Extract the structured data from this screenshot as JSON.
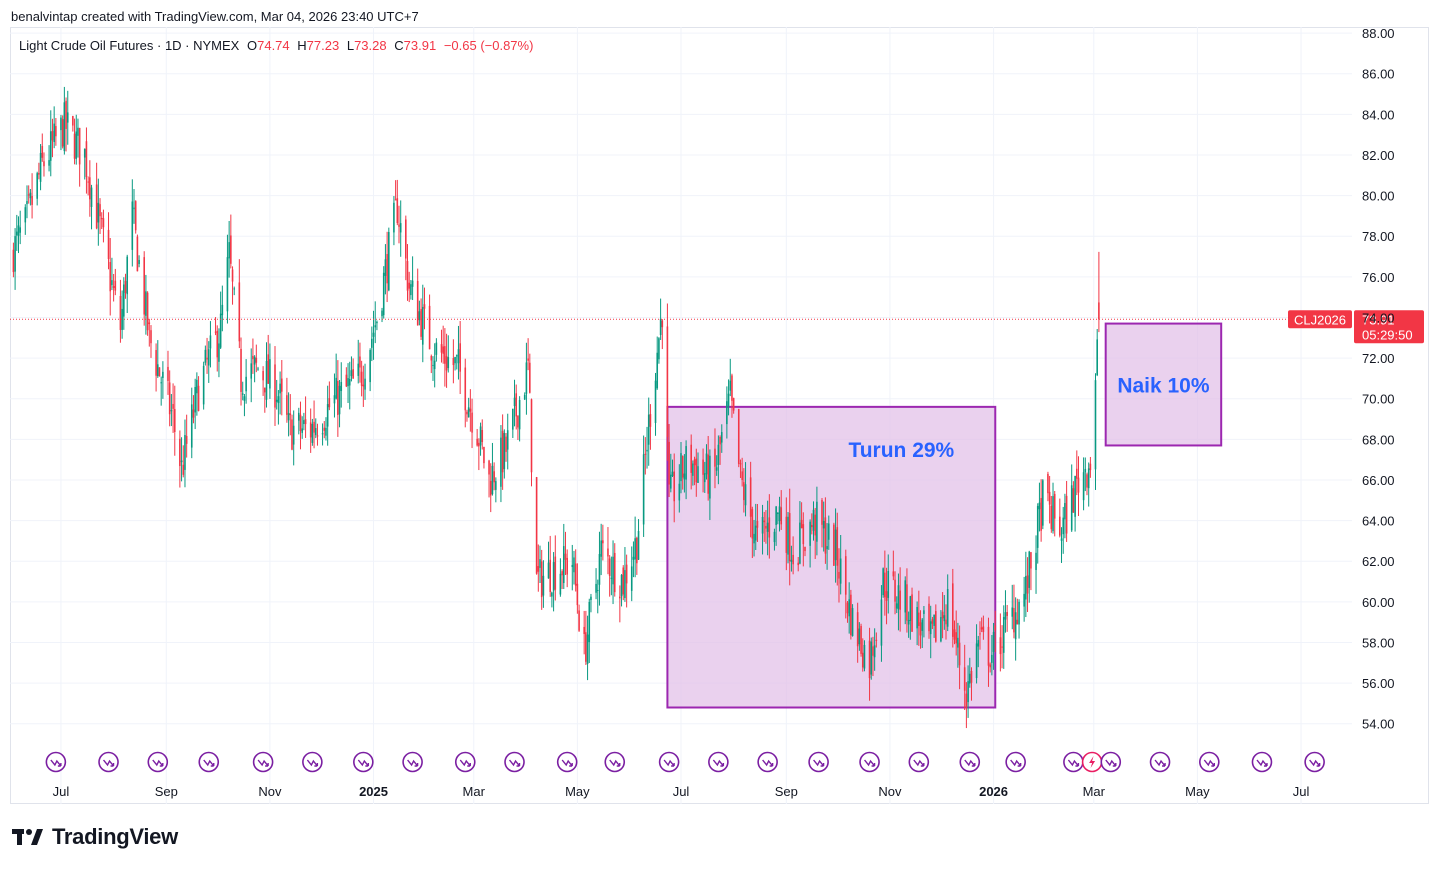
{
  "credit": "benalvintap created with TradingView.com, Mar 04, 2026 23:40 UTC+7",
  "legend": {
    "symbol": "Light Crude Oil Futures · 1D · NYMEX",
    "o_label": "O",
    "o": "74.74",
    "h_label": "H",
    "h": "77.23",
    "l_label": "L",
    "l": "73.28",
    "c_label": "C",
    "c": "73.91",
    "change": "−0.65 (−0.87%)"
  },
  "price_tag": {
    "ticker": "CLJ2026",
    "price": "73.91",
    "countdown": "05:29:50"
  },
  "brand": "TradingView",
  "colors": {
    "up": "#089981",
    "down": "#f23645",
    "box_fill": "#e1bee7",
    "box_border": "#9c27b0",
    "annotation_text": "#2962ff",
    "event_icon": "#7b1fa2"
  },
  "chart_data": {
    "type": "candlestick",
    "y_axis": {
      "ticks": [
        "88.00",
        "86.00",
        "84.00",
        "82.00",
        "80.00",
        "78.00",
        "76.00",
        "74.00",
        "72.00",
        "70.00",
        "68.00",
        "66.00",
        "64.00",
        "62.00",
        "60.00",
        "58.00",
        "56.00",
        "54.00"
      ],
      "ylim": [
        53.2,
        88.3
      ],
      "position": "right"
    },
    "x_axis": {
      "ticks": [
        {
          "label": "Jul",
          "bold": false
        },
        {
          "label": "Sep",
          "bold": false
        },
        {
          "label": "Nov",
          "bold": false
        },
        {
          "label": "2025",
          "bold": true
        },
        {
          "label": "Mar",
          "bold": false
        },
        {
          "label": "May",
          "bold": false
        },
        {
          "label": "Jul",
          "bold": false
        },
        {
          "label": "Sep",
          "bold": false
        },
        {
          "label": "Nov",
          "bold": false
        },
        {
          "label": "2026",
          "bold": true
        },
        {
          "label": "Mar",
          "bold": false
        },
        {
          "label": "May",
          "bold": false
        },
        {
          "label": "Jul",
          "bold": false
        }
      ],
      "range": [
        "2024-06-01",
        "2026-07-31"
      ]
    },
    "last_price": 73.91,
    "path_description": "Daily closes approximated from chart",
    "anchors": [
      [
        "2024-06-01",
        77.0
      ],
      [
        "2024-06-10",
        78.5
      ],
      [
        "2024-06-20",
        81.5
      ],
      [
        "2024-07-03",
        83.5
      ],
      [
        "2024-07-15",
        82.0
      ],
      [
        "2024-07-25",
        78.0
      ],
      [
        "2024-08-05",
        73.5
      ],
      [
        "2024-08-12",
        79.0
      ],
      [
        "2024-08-22",
        73.0
      ],
      [
        "2024-09-05",
        69.0
      ],
      [
        "2024-09-10",
        66.5
      ],
      [
        "2024-09-20",
        70.5
      ],
      [
        "2024-10-03",
        73.5
      ],
      [
        "2024-10-08",
        77.0
      ],
      [
        "2024-10-15",
        71.0
      ],
      [
        "2024-10-25",
        71.5
      ],
      [
        "2024-11-05",
        70.5
      ],
      [
        "2024-11-12",
        68.5
      ],
      [
        "2024-11-25",
        68.5
      ],
      [
        "2024-12-10",
        70.0
      ],
      [
        "2024-12-24",
        71.0
      ],
      [
        "2025-01-03",
        74.0
      ],
      [
        "2025-01-15",
        79.5
      ],
      [
        "2025-01-22",
        75.5
      ],
      [
        "2025-02-05",
        72.5
      ],
      [
        "2025-02-20",
        71.5
      ],
      [
        "2025-03-03",
        68.5
      ],
      [
        "2025-03-10",
        66.0
      ],
      [
        "2025-03-20",
        67.5
      ],
      [
        "2025-04-02",
        71.5
      ],
      [
        "2025-04-07",
        61.0
      ],
      [
        "2025-04-15",
        61.5
      ],
      [
        "2025-04-28",
        62.0
      ],
      [
        "2025-05-05",
        57.5
      ],
      [
        "2025-05-15",
        62.5
      ],
      [
        "2025-05-28",
        61.0
      ],
      [
        "2025-06-05",
        63.0
      ],
      [
        "2025-06-13",
        69.5
      ],
      [
        "2025-06-20",
        74.5
      ],
      [
        "2025-06-24",
        65.0
      ],
      [
        "2025-07-05",
        67.0
      ],
      [
        "2025-07-20",
        66.0
      ],
      [
        "2025-07-30",
        70.0
      ],
      [
        "2025-08-05",
        66.0
      ],
      [
        "2025-08-15",
        63.0
      ],
      [
        "2025-08-28",
        64.5
      ],
      [
        "2025-09-05",
        62.5
      ],
      [
        "2025-09-18",
        64.0
      ],
      [
        "2025-09-30",
        62.5
      ],
      [
        "2025-10-10",
        59.0
      ],
      [
        "2025-10-20",
        57.0
      ],
      [
        "2025-10-28",
        61.0
      ],
      [
        "2025-11-10",
        60.0
      ],
      [
        "2025-11-25",
        58.0
      ],
      [
        "2025-12-05",
        60.0
      ],
      [
        "2025-12-16",
        55.5
      ],
      [
        "2025-12-23",
        58.0
      ],
      [
        "2025-12-31",
        57.5
      ],
      [
        "2026-01-10",
        59.0
      ],
      [
        "2026-01-20",
        60.5
      ],
      [
        "2026-01-30",
        65.0
      ],
      [
        "2026-02-10",
        63.5
      ],
      [
        "2026-02-20",
        66.0
      ],
      [
        "2026-02-27",
        67.0
      ],
      [
        "2026-03-02",
        71.0
      ],
      [
        "2026-03-04",
        73.91
      ]
    ],
    "annotations": [
      {
        "label": "Turun 29%",
        "from": [
          "2025-06-23",
          69.6
        ],
        "to": [
          "2026-01-02",
          54.8
        ]
      },
      {
        "label": "Naik 10%",
        "from": [
          "2026-03-08",
          73.7
        ],
        "to": [
          "2026-05-15",
          67.7
        ]
      }
    ],
    "event_markers": [
      "2024-06-28",
      "2024-07-29",
      "2024-08-27",
      "2024-09-26",
      "2024-10-28",
      "2024-11-26",
      "2024-12-26",
      "2025-01-24",
      "2025-02-24",
      "2025-03-25",
      "2025-04-25",
      "2025-05-23",
      "2025-06-24",
      "2025-07-23",
      "2025-08-21",
      "2025-09-20",
      "2025-10-20",
      "2025-11-18",
      "2025-12-18",
      "2026-01-14",
      "2026-02-17",
      "2026-02-28",
      "2026-03-11",
      "2026-04-09",
      "2026-05-08",
      "2026-06-08",
      "2026-07-09"
    ]
  }
}
